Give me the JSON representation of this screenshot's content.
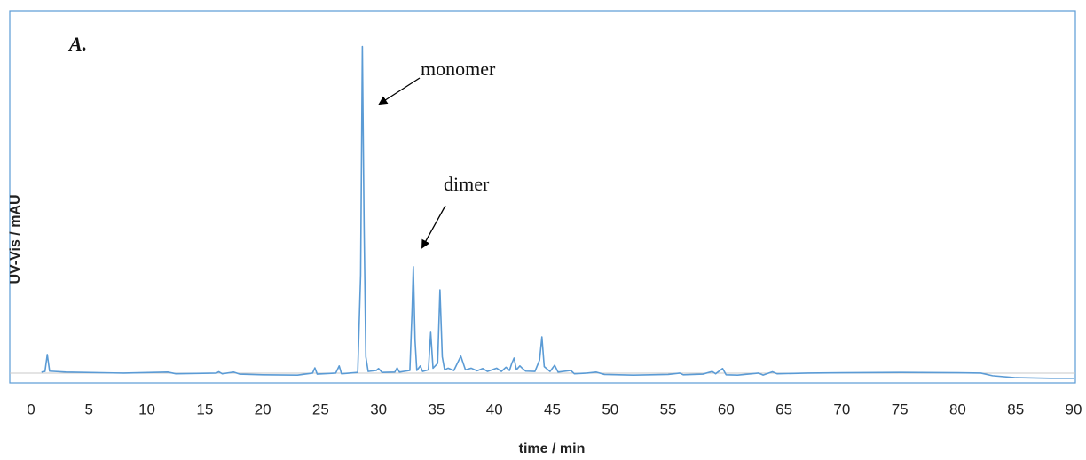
{
  "chart_data": {
    "type": "line",
    "panel_label": "A.",
    "x_label": "time / min",
    "y_label": "UV-Vis / mAU",
    "annotations": [
      "monomer",
      "dimer"
    ],
    "xlim": [
      0,
      90
    ],
    "xticks": [
      0,
      5,
      10,
      15,
      20,
      25,
      30,
      35,
      40,
      45,
      50,
      55,
      60,
      65,
      70,
      75,
      80,
      85,
      90
    ],
    "ylim": [
      -3,
      111
    ],
    "series": [
      {
        "color": "#5b9bd5",
        "x": [
          0.9,
          1.2,
          1.4,
          1.6,
          3,
          8,
          11.8,
          12.5,
          16,
          16.2,
          16.5,
          17.5,
          18,
          20,
          23,
          24.3,
          24.5,
          24.7,
          26.3,
          26.6,
          26.8,
          28.2,
          28.45,
          28.6,
          28.75,
          28.9,
          29.1,
          29.8,
          30,
          30.3,
          31.4,
          31.6,
          31.8,
          32.7,
          32.9,
          33.0,
          33.15,
          33.3,
          33.6,
          33.8,
          34.3,
          34.5,
          34.7,
          35.1,
          35.3,
          35.5,
          35.7,
          36,
          36.5,
          37.1,
          37.5,
          38,
          38.5,
          39,
          39.4,
          40.2,
          40.6,
          41,
          41.3,
          41.5,
          41.7,
          41.9,
          42.2,
          42.4,
          42.7,
          43.5,
          43.9,
          44.1,
          44.3,
          44.8,
          45.2,
          45.5,
          46.6,
          46.9,
          48,
          48.8,
          49.5,
          52,
          55,
          56,
          56.3,
          58,
          58.8,
          59.1,
          59.7,
          60,
          61,
          62.8,
          63.2,
          64,
          64.4,
          67,
          70,
          75,
          80,
          82,
          83,
          85,
          88,
          90
        ],
        "values": [
          0.3,
          0.5,
          5.7,
          0.6,
          0.3,
          0,
          0.3,
          -0.2,
          0,
          0.4,
          -0.2,
          0.3,
          -0.3,
          -0.5,
          -0.6,
          0,
          1.6,
          -0.3,
          0,
          2.2,
          -0.2,
          0.2,
          30,
          100,
          45,
          5,
          0.5,
          0.8,
          1.4,
          0.2,
          0.3,
          1.6,
          0.3,
          0.8,
          20,
          32.6,
          10,
          0.8,
          2.2,
          0.5,
          1,
          12.5,
          1.5,
          3,
          25.5,
          5,
          1,
          1.5,
          0.8,
          5.2,
          1,
          1.5,
          0.7,
          1.4,
          0.5,
          1.5,
          0.5,
          1.8,
          0.8,
          3,
          4.6,
          1,
          2.2,
          1.5,
          0.6,
          0.5,
          4,
          11.1,
          2,
          0.5,
          2.4,
          0.3,
          0.8,
          -0.2,
          0,
          0.3,
          -0.4,
          -0.6,
          -0.4,
          0,
          -0.5,
          -0.3,
          0.5,
          -0.2,
          1.4,
          -0.5,
          -0.6,
          0,
          -0.6,
          0.4,
          -0.2,
          0,
          0.1,
          0.2,
          0.1,
          0,
          -0.8,
          -1.4,
          -1.6,
          -1.6
        ]
      }
    ]
  }
}
